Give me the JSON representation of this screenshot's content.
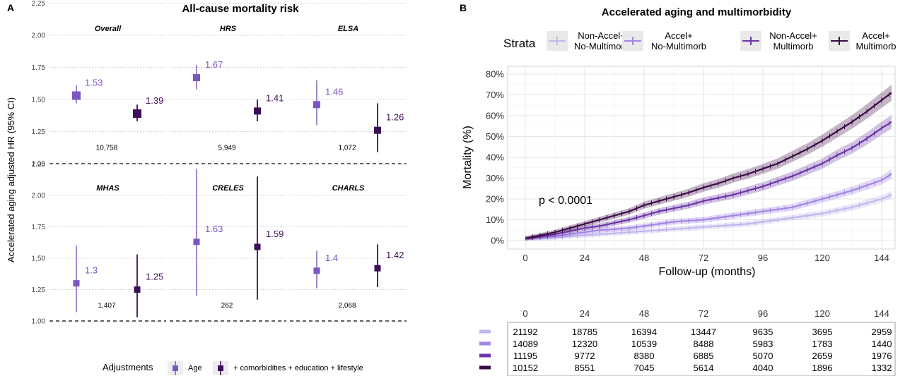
{
  "colors": {
    "age": "#7b56c2",
    "full": "#3d0f57",
    "strata": [
      "#c2b6ec",
      "#a186e4",
      "#6b35a6",
      "#3a0a45"
    ]
  },
  "panel_a": {
    "tag": "A",
    "title": "All-cause mortality risk",
    "ylabel": "Accelerated aging adjusted HR (95% CI)",
    "legend_title": "Adjustments",
    "legend_items": [
      "Age",
      "+ comorbidities + education + lifestyle"
    ]
  },
  "panel_b": {
    "tag": "B",
    "title": "Accelerated aging and multimorbidity",
    "legend_title": "Strata",
    "legend_items": [
      [
        "Non-Accel+",
        "No-Multimorb"
      ],
      [
        "Accel+",
        "No-Multimorb"
      ],
      [
        "Non-Accel+",
        "Multimorb"
      ],
      [
        "Accel+",
        "Multimorb"
      ]
    ],
    "annotation": "p < 0.0001",
    "risk_table": {
      "times": [
        "0",
        "24",
        "48",
        "72",
        "96",
        "120",
        "144"
      ],
      "rows": [
        [
          "21192",
          "18785",
          "16394",
          "13447",
          "9635",
          "3695",
          "2959"
        ],
        [
          "14089",
          "12320",
          "10539",
          "8488",
          "5983",
          "1783",
          "1440"
        ],
        [
          "11195",
          "9772",
          "8380",
          "6885",
          "5070",
          "2659",
          "1976"
        ],
        [
          "10152",
          "8551",
          "7045",
          "5614",
          "4040",
          "1896",
          "1332"
        ]
      ]
    }
  },
  "chart_data": [
    {
      "type": "scatter",
      "title": "All-cause mortality risk",
      "ylabel": "Accelerated aging adjusted HR (95% CI)",
      "ylim": [
        1.0,
        2.3
      ],
      "yticks": [
        "1.00",
        "1.25",
        "1.50",
        "1.75",
        "2.00",
        "2.25"
      ],
      "reference_line": 1.0,
      "grid": "horizontal dotted",
      "legend_position": "bottom",
      "facets": [
        {
          "name": "Overall",
          "n": "10,758",
          "estimates": [
            {
              "series": "Age",
              "hr": 1.53,
              "lo": 1.47,
              "hi": 1.61
            },
            {
              "series": "+ comorbidities + education + lifestyle",
              "hr": 1.39,
              "lo": 1.33,
              "hi": 1.46
            }
          ]
        },
        {
          "name": "HRS",
          "n": "5,949",
          "estimates": [
            {
              "series": "Age",
              "hr": 1.67,
              "lo": 1.58,
              "hi": 1.77
            },
            {
              "series": "+ comorbidities + education + lifestyle",
              "hr": 1.41,
              "lo": 1.33,
              "hi": 1.5
            }
          ]
        },
        {
          "name": "ELSA",
          "n": "1,072",
          "estimates": [
            {
              "series": "Age",
              "hr": 1.46,
              "lo": 1.3,
              "hi": 1.65
            },
            {
              "series": "+ comorbidities + education + lifestyle",
              "hr": 1.26,
              "lo": 1.09,
              "hi": 1.47
            }
          ]
        },
        {
          "name": "MHAS",
          "n": "1,407",
          "estimates": [
            {
              "series": "Age",
              "hr": 1.3,
              "lo": 1.07,
              "hi": 1.6
            },
            {
              "series": "+ comorbidities + education + lifestyle",
              "hr": 1.25,
              "lo": 1.03,
              "hi": 1.53
            }
          ]
        },
        {
          "name": "CRELES",
          "n": "262",
          "estimates": [
            {
              "series": "Age",
              "hr": 1.63,
              "lo": 1.2,
              "hi": 2.21
            },
            {
              "series": "+ comorbidities + education + lifestyle",
              "hr": 1.59,
              "lo": 1.17,
              "hi": 2.15
            }
          ]
        },
        {
          "name": "CHARLS",
          "n": "2,068",
          "estimates": [
            {
              "series": "Age",
              "hr": 1.4,
              "lo": 1.26,
              "hi": 1.56
            },
            {
              "series": "+ comorbidities + education + lifestyle",
              "hr": 1.42,
              "lo": 1.27,
              "hi": 1.61
            }
          ]
        }
      ]
    },
    {
      "type": "line",
      "title": "Accelerated aging and multimorbidity",
      "xlabel": "Follow-up (months)",
      "ylabel": "Mortality (%)",
      "xlim": [
        0,
        150
      ],
      "ylim": [
        0,
        80
      ],
      "xticks": [
        0,
        24,
        48,
        72,
        96,
        120,
        144
      ],
      "yticks": [
        "0%",
        "10%",
        "20%",
        "30%",
        "40%",
        "50%",
        "60%",
        "70%",
        "80%"
      ],
      "grid": true,
      "legend_position": "top",
      "x": [
        0,
        6,
        12,
        18,
        24,
        30,
        36,
        42,
        48,
        54,
        60,
        66,
        72,
        78,
        84,
        90,
        96,
        102,
        108,
        114,
        120,
        126,
        132,
        138,
        144,
        148
      ],
      "series": [
        {
          "name": "Non-Accel+ No-Multimorb",
          "values": [
            1,
            1,
            1.5,
            2,
            2.5,
            3,
            3.5,
            4,
            4.5,
            5,
            5.5,
            6,
            6.5,
            7,
            7.5,
            8,
            9,
            10,
            11,
            12,
            13,
            14.5,
            16,
            18,
            20,
            22
          ]
        },
        {
          "name": "Accel+ No-Multimorb",
          "values": [
            1,
            1.5,
            2,
            3,
            4,
            5,
            5.5,
            6,
            7,
            8,
            9,
            9.5,
            10,
            11,
            12,
            13,
            14,
            15,
            16,
            18,
            20,
            22,
            24,
            26.5,
            29,
            32
          ]
        },
        {
          "name": "Non-Accel+ Multimorb",
          "values": [
            1,
            2,
            3,
            4.5,
            6,
            7,
            8.5,
            10,
            12,
            14,
            15.5,
            17,
            19,
            20.5,
            22,
            24,
            26,
            28.5,
            31,
            34,
            37,
            41,
            44.5,
            49,
            54,
            57
          ]
        },
        {
          "name": "Accel+ Multimorb",
          "values": [
            1,
            2.5,
            4,
            6,
            8,
            10,
            12,
            14,
            17,
            19,
            21,
            23,
            25.5,
            27.5,
            30,
            32,
            34.5,
            37,
            40.5,
            44,
            48,
            52.5,
            57,
            62,
            67.5,
            71
          ]
        }
      ]
    }
  ]
}
